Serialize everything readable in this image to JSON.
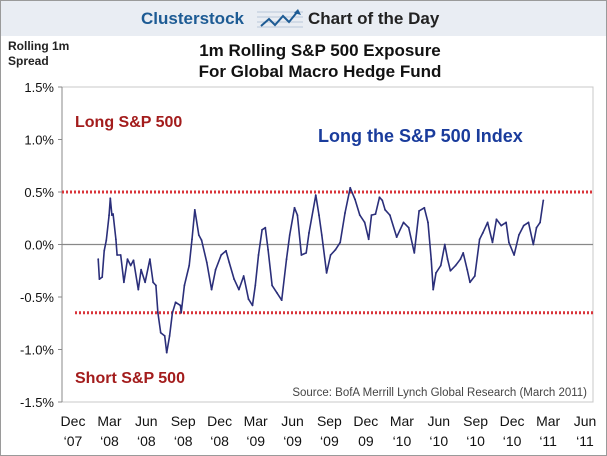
{
  "header": {
    "brand": "Clusterstock",
    "tagline": "Chart of the Day",
    "logo_icon": "rising-chart-icon"
  },
  "chart_data": {
    "type": "line",
    "title": "1m Rolling S&P 500 Exposure For Global Macro Hedge Fund",
    "title_lines": [
      "1m Rolling S&P 500 Exposure",
      "For Global Macro Hedge Fund"
    ],
    "ylabel": "Rolling 1m Spread",
    "ylabel_lines": [
      "Rolling 1m",
      "Spread"
    ],
    "ylim": [
      -1.5,
      1.5
    ],
    "xlim": [
      "2007-12-01",
      "2011-06-01"
    ],
    "y_ticks": [
      "1.5%",
      "1.0%",
      "0.5%",
      "0.0%",
      "-0.5%",
      "-1.0%",
      "-1.5%"
    ],
    "y_tick_values": [
      1.5,
      1.0,
      0.5,
      0.0,
      -0.5,
      -1.0,
      -1.5
    ],
    "x_ticks": [
      {
        "date": "2007-12-01",
        "line1": "Dec",
        "line2": "‘07"
      },
      {
        "date": "2008-03-01",
        "line1": "Mar",
        "line2": "‘08"
      },
      {
        "date": "2008-06-01",
        "line1": "Jun",
        "line2": "‘08"
      },
      {
        "date": "2008-09-01",
        "line1": "Sep",
        "line2": "‘08"
      },
      {
        "date": "2008-12-01",
        "line1": "Dec",
        "line2": "‘08"
      },
      {
        "date": "2009-03-01",
        "line1": "Mar",
        "line2": "‘09"
      },
      {
        "date": "2009-06-01",
        "line1": "Jun",
        "line2": "‘09"
      },
      {
        "date": "2009-09-01",
        "line1": "Sep",
        "line2": "‘09"
      },
      {
        "date": "2009-12-01",
        "line1": "Dec",
        "line2": "09"
      },
      {
        "date": "2010-03-01",
        "line1": "Mar",
        "line2": "‘10"
      },
      {
        "date": "2010-06-01",
        "line1": "Jun",
        "line2": "‘10"
      },
      {
        "date": "2010-09-01",
        "line1": "Sep",
        "line2": "‘10"
      },
      {
        "date": "2010-12-01",
        "line1": "Dec",
        "line2": "‘10"
      },
      {
        "date": "2011-03-01",
        "line1": "Mar",
        "line2": "‘11"
      },
      {
        "date": "2011-06-01",
        "line1": "Jun",
        "line2": "‘11"
      }
    ],
    "grid": false,
    "zero_line": 0.0,
    "thresholds": [
      {
        "value": 0.5,
        "color": "#d9343a",
        "style": "dotted"
      },
      {
        "value": -0.65,
        "color": "#d9343a",
        "style": "dotted"
      }
    ],
    "annotations": {
      "long": {
        "text": "Long S&P 500",
        "color": "#a31c1c"
      },
      "long_index": {
        "text": "Long the S&P 500 Index",
        "color": "#1a3c9c"
      },
      "short": {
        "text": "Short S&P 500",
        "color": "#a31c1c"
      },
      "source": {
        "text": "Source: BofA Merrill Lynch Global Research (March 2011)",
        "color": "#444444"
      }
    },
    "series": [
      {
        "color": "#2b2f7a",
        "x": [
          "2008-02-02",
          "2008-02-05",
          "2008-02-12",
          "2008-02-17",
          "2008-02-22",
          "2008-02-29",
          "2008-03-03",
          "2008-03-07",
          "2008-03-10",
          "2008-03-17",
          "2008-03-20",
          "2008-03-29",
          "2008-04-06",
          "2008-04-15",
          "2008-04-23",
          "2008-04-30",
          "2008-05-12",
          "2008-05-19",
          "2008-05-29",
          "2008-06-10",
          "2008-06-18",
          "2008-06-25",
          "2008-06-30",
          "2008-07-07",
          "2008-07-17",
          "2008-07-22",
          "2008-07-29",
          "2008-08-05",
          "2008-08-13",
          "2008-08-25",
          "2008-08-27",
          "2008-09-04",
          "2008-09-16",
          "2008-09-23",
          "2008-09-30",
          "2008-10-10",
          "2008-10-17",
          "2008-10-30",
          "2008-11-11",
          "2008-11-21",
          "2008-12-05",
          "2008-12-17",
          "2008-12-25",
          "2009-01-06",
          "2009-01-18",
          "2009-01-30",
          "2009-02-11",
          "2009-02-21",
          "2009-02-28",
          "2009-03-08",
          "2009-03-17",
          "2009-03-25",
          "2009-04-01",
          "2009-04-11",
          "2009-04-23",
          "2009-05-05",
          "2009-05-17",
          "2009-05-25",
          "2009-06-06",
          "2009-06-13",
          "2009-06-23",
          "2009-07-05",
          "2009-07-12",
          "2009-07-29",
          "2009-08-06",
          "2009-08-13",
          "2009-08-25",
          "2009-09-04",
          "2009-09-16",
          "2009-09-28",
          "2009-10-10",
          "2009-10-23",
          "2009-11-04",
          "2009-11-16",
          "2009-11-28",
          "2009-12-08",
          "2009-12-15",
          "2009-12-25",
          "2010-01-04",
          "2010-01-11",
          "2010-01-18",
          "2010-01-30",
          "2010-02-16",
          "2010-03-05",
          "2010-03-18",
          "2010-04-01",
          "2010-04-13",
          "2010-04-26",
          "2010-05-05",
          "2010-05-13",
          "2010-05-18",
          "2010-05-25",
          "2010-06-06",
          "2010-06-16",
          "2010-06-23",
          "2010-06-30",
          "2010-07-13",
          "2010-07-25",
          "2010-08-01",
          "2010-08-11",
          "2010-08-18",
          "2010-08-30",
          "2010-09-11",
          "2010-09-19",
          "2010-10-01",
          "2010-10-13",
          "2010-10-23",
          "2010-11-04",
          "2010-11-16",
          "2010-11-23",
          "2010-12-06",
          "2010-12-18",
          "2010-12-30",
          "2011-01-11",
          "2011-01-23",
          "2011-01-31",
          "2011-02-09",
          "2011-02-17"
        ],
        "y": [
          -0.14,
          -0.33,
          -0.31,
          -0.06,
          0.04,
          0.28,
          0.44,
          0.28,
          0.29,
          0.05,
          -0.1,
          -0.1,
          -0.36,
          -0.14,
          -0.2,
          -0.15,
          -0.43,
          -0.24,
          -0.36,
          -0.14,
          -0.36,
          -0.39,
          -0.65,
          -0.84,
          -0.87,
          -1.03,
          -0.87,
          -0.65,
          -0.55,
          -0.58,
          -0.65,
          -0.39,
          -0.2,
          0.05,
          0.33,
          0.09,
          0.04,
          -0.17,
          -0.43,
          -0.24,
          -0.1,
          -0.06,
          -0.17,
          -0.33,
          -0.43,
          -0.3,
          -0.52,
          -0.58,
          -0.39,
          -0.1,
          0.14,
          0.16,
          -0.05,
          -0.39,
          -0.46,
          -0.53,
          -0.14,
          0.09,
          0.35,
          0.28,
          -0.1,
          -0.08,
          0.11,
          0.47,
          0.28,
          0.09,
          -0.27,
          -0.1,
          -0.05,
          0.02,
          0.3,
          0.54,
          0.43,
          0.28,
          0.21,
          0.05,
          0.28,
          0.29,
          0.45,
          0.42,
          0.33,
          0.28,
          0.07,
          0.21,
          0.16,
          -0.08,
          0.32,
          0.35,
          0.21,
          -0.14,
          -0.43,
          -0.27,
          -0.2,
          0.0,
          -0.14,
          -0.25,
          -0.2,
          -0.14,
          -0.08,
          -0.24,
          -0.36,
          -0.3,
          0.05,
          0.11,
          0.21,
          0.02,
          0.24,
          0.18,
          0.21,
          0.02,
          -0.1,
          0.09,
          0.18,
          0.21,
          0.0,
          0.16,
          0.21,
          0.42
        ]
      }
    ]
  }
}
